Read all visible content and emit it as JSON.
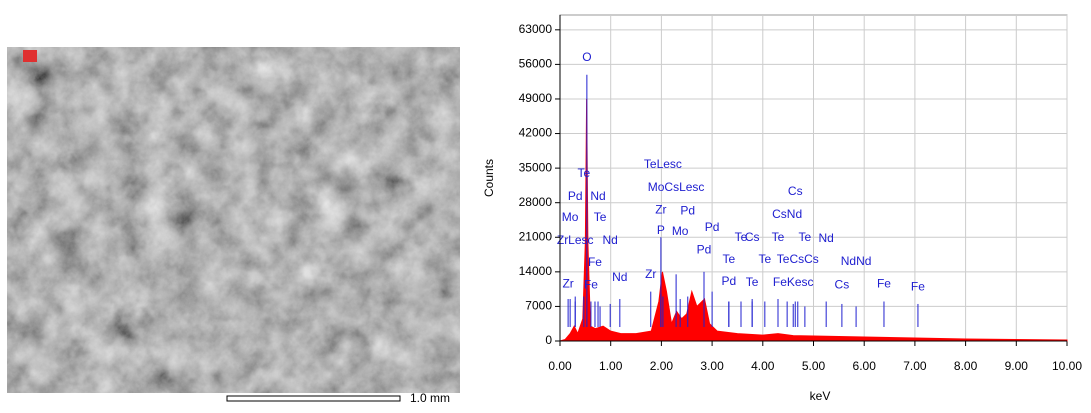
{
  "micrograph": {
    "scale_label": "1.0 mm"
  },
  "chart_data": {
    "type": "area",
    "x_label": "keV",
    "y_label": "Counts",
    "color": "#ff0000",
    "marker_color": "#2020d0",
    "grid": true,
    "xlim": [
      0,
      10
    ],
    "ylim": [
      0,
      66000
    ],
    "xticks": [
      {
        "value": 0,
        "label": "0.00"
      },
      {
        "value": 1,
        "label": "1.00"
      },
      {
        "value": 2,
        "label": "2.00"
      },
      {
        "value": 3,
        "label": "3.00"
      },
      {
        "value": 4,
        "label": "4.00"
      },
      {
        "value": 5,
        "label": "5.00"
      },
      {
        "value": 6,
        "label": "6.00"
      },
      {
        "value": 7,
        "label": "7.00"
      },
      {
        "value": 8,
        "label": "8.00"
      },
      {
        "value": 9,
        "label": "9.00"
      },
      {
        "value": 10,
        "label": "10.00"
      }
    ],
    "yticks": [
      0,
      7000,
      14000,
      21000,
      28000,
      35000,
      42000,
      49000,
      56000,
      63000
    ],
    "x": [
      0,
      0.1,
      0.2,
      0.28,
      0.35,
      0.45,
      0.5,
      0.525,
      0.55,
      0.6,
      0.7,
      0.85,
      1.0,
      1.2,
      1.5,
      1.8,
      1.95,
      2.02,
      2.1,
      2.2,
      2.3,
      2.4,
      2.5,
      2.6,
      2.7,
      2.85,
      2.95,
      3.1,
      3.5,
      4.0,
      4.3,
      4.6,
      5.0,
      6.0,
      7.0,
      8.0,
      9.0,
      10.0
    ],
    "values": [
      0,
      300,
      1500,
      3000,
      1500,
      4500,
      20000,
      49000,
      20000,
      3000,
      2500,
      3000,
      2000,
      1500,
      1500,
      2000,
      8000,
      14000,
      10000,
      3500,
      6000,
      4500,
      5500,
      10000,
      7000,
      8500,
      3500,
      2000,
      1500,
      1200,
      1500,
      1100,
      1000,
      800,
      600,
      400,
      300,
      200
    ],
    "markers": [
      {
        "label": "O",
        "x": 0.53,
        "y": 57300,
        "line_top": 53900
      },
      {
        "label": "Te",
        "x": 0.47,
        "y": 33800,
        "line_top": 9000
      },
      {
        "label": "Pd",
        "x": 0.3,
        "y": 29200,
        "line_top": 8000
      },
      {
        "label": "Nd",
        "x": 0.75,
        "y": 29200,
        "line_top": 8000
      },
      {
        "label": "Mo",
        "x": 0.2,
        "y": 24900,
        "line_top": 8500
      },
      {
        "label": "Te",
        "x": 0.79,
        "y": 24900,
        "line_top": 7000
      },
      {
        "label": "ZrLesc",
        "x": 0.3,
        "y": 20300,
        "line_top": 9000
      },
      {
        "label": "Nd",
        "x": 0.99,
        "y": 20300,
        "line_top": 7500
      },
      {
        "label": "Fe",
        "x": 0.69,
        "y": 15800,
        "line_top": 8000
      },
      {
        "label": "Zr",
        "x": 0.16,
        "y": 11500,
        "line_top": 8500
      },
      {
        "label": "Fe",
        "x": 0.61,
        "y": 11300,
        "line_top": 8000
      },
      {
        "label": "Nd",
        "x": 1.18,
        "y": 12800,
        "line_top": 8500
      },
      {
        "label": "TeLesc",
        "x": 2.03,
        "y": 35700,
        "line_top": 9000
      },
      {
        "label": "MoCsLesc",
        "x": 2.29,
        "y": 31000,
        "line_top": 13500
      },
      {
        "label": "Zr",
        "x": 1.99,
        "y": 26500,
        "line_top": 9500
      },
      {
        "label": "Pd",
        "x": 2.52,
        "y": 26300,
        "line_top": 9000
      },
      {
        "label": "Pd",
        "x": 3.0,
        "y": 22900,
        "line_top": 10000
      },
      {
        "label": "P",
        "x": 1.99,
        "y": 22300,
        "line_top": 21000
      },
      {
        "label": "Mo",
        "x": 2.37,
        "y": 22100,
        "line_top": 8500
      },
      {
        "label": "Pd",
        "x": 2.84,
        "y": 18400,
        "line_top": 14000
      },
      {
        "label": "Zr",
        "x": 1.79,
        "y": 13400,
        "line_top": 10000
      },
      {
        "label": "Te",
        "x": 3.33,
        "y": 16400,
        "line_top": 8000
      },
      {
        "label": "Pd",
        "x": 3.33,
        "y": 12000,
        "line_top": 8000
      },
      {
        "label": "Te",
        "x": 3.57,
        "y": 20900,
        "line_top": 8000
      },
      {
        "label": "Cs",
        "x": 3.79,
        "y": 20900,
        "line_top": 8500
      },
      {
        "label": "Te",
        "x": 3.79,
        "y": 11800,
        "line_top": 8000
      },
      {
        "label": "Te",
        "x": 4.3,
        "y": 20900,
        "line_top": 8500
      },
      {
        "label": "Te",
        "x": 4.04,
        "y": 16400,
        "line_top": 8000
      },
      {
        "label": "Cs",
        "x": 4.64,
        "y": 30200,
        "line_top": 8000
      },
      {
        "label": "CsNd",
        "x": 4.48,
        "y": 25500,
        "line_top": 8000
      },
      {
        "label": "Te",
        "x": 4.83,
        "y": 20900,
        "line_top": 7000
      },
      {
        "label": "Nd",
        "x": 5.25,
        "y": 20700,
        "line_top": 8000
      },
      {
        "label": "TeCsCs",
        "x": 4.69,
        "y": 16400,
        "line_top": 8000
      },
      {
        "label": "FeKesc",
        "x": 4.6,
        "y": 11800,
        "line_top": 7500
      },
      {
        "label": "NdNd",
        "x": 5.84,
        "y": 16000,
        "line_top": 7000
      },
      {
        "label": "Cs",
        "x": 5.56,
        "y": 11300,
        "line_top": 7500
      },
      {
        "label": "Fe",
        "x": 6.39,
        "y": 11500,
        "line_top": 8000
      },
      {
        "label": "Fe",
        "x": 7.06,
        "y": 10900,
        "line_top": 7500
      }
    ]
  }
}
